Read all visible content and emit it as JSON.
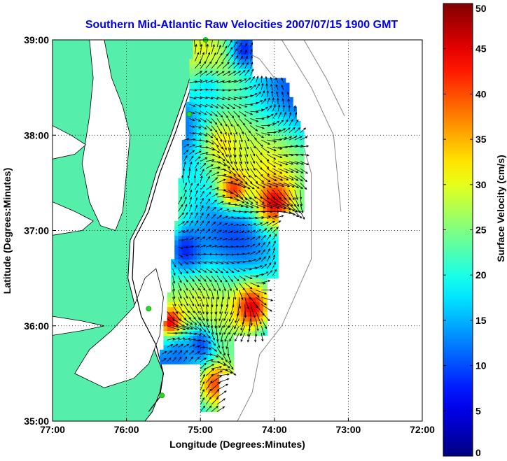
{
  "chart_data": {
    "type": "heatmap",
    "title": "Southern Mid-Atlantic Raw Velocities 2007/07/15 1900 GMT",
    "xlabel": "Longitude (Degrees:Minutes)",
    "ylabel": "Latitude (Degrees:Minutes)",
    "xlim": [
      -77,
      -72
    ],
    "ylim": [
      35,
      39
    ],
    "x_ticks": [
      {
        "value": -77,
        "label": "77:00"
      },
      {
        "value": -76,
        "label": "76:00"
      },
      {
        "value": -75,
        "label": "75:00"
      },
      {
        "value": -74,
        "label": "74:00"
      },
      {
        "value": -73,
        "label": "73:00"
      },
      {
        "value": -72,
        "label": "72:00"
      }
    ],
    "y_ticks": [
      {
        "value": 35,
        "label": "35:00"
      },
      {
        "value": 36,
        "label": "36:00"
      },
      {
        "value": 37,
        "label": "37:00"
      },
      {
        "value": 38,
        "label": "38:00"
      },
      {
        "value": 39,
        "label": "39:00"
      }
    ],
    "grid": true,
    "grid_style": "dotted",
    "colorbar": {
      "label": "Surface Velocity (cm/s)",
      "range": [
        0,
        50
      ],
      "ticks": [
        {
          "value": 0,
          "label": "0"
        },
        {
          "value": 5,
          "label": "5"
        },
        {
          "value": 10,
          "label": "10"
        },
        {
          "value": 15,
          "label": "15"
        },
        {
          "value": 20,
          "label": "20"
        },
        {
          "value": 25,
          "label": "25"
        },
        {
          "value": 30,
          "label": "30"
        },
        {
          "value": 35,
          "label": "35"
        },
        {
          "value": 40,
          "label": "40"
        },
        {
          "value": 45,
          "label": "45"
        },
        {
          "value": 50,
          "label": "50"
        }
      ],
      "colormap": "jet"
    },
    "colors": {
      "land": "#55eeaa",
      "water": "#ffffff",
      "title": "#0000ee",
      "coast_line": "#000000",
      "bathymetry": "#888888",
      "arrows": "#000000",
      "stations": "#22dd22"
    },
    "field": {
      "lon_step": 0.1,
      "lat_step": 0.1,
      "lon_start": -75.8,
      "lat_start": 35.1,
      "rows": [
        [
          0,
          0,
          0,
          0,
          0,
          0,
          0,
          0,
          0,
          0,
          0,
          0,
          0,
          0,
          0,
          0,
          0,
          0,
          0,
          0,
          0,
          0,
          0,
          0,
          0,
          0,
          0
        ],
        [
          0,
          0,
          0,
          0,
          0,
          0,
          0,
          0,
          0,
          0,
          0,
          0,
          0,
          0,
          0,
          0,
          0,
          0,
          0,
          0,
          0,
          0,
          0,
          0,
          0,
          0,
          0
        ]
      ],
      "scene": {
        "lat_min": 35.1,
        "lat_max": 39.0,
        "base_speed": 20,
        "hotspots": [
          {
            "lon": -74.3,
            "lat": 36.2,
            "r": 0.25,
            "v": 45
          },
          {
            "lon": -74.0,
            "lat": 37.3,
            "r": 0.25,
            "v": 45
          },
          {
            "lon": -74.55,
            "lat": 37.45,
            "r": 0.2,
            "v": 42
          },
          {
            "lon": -75.4,
            "lat": 36.05,
            "r": 0.15,
            "v": 45
          },
          {
            "lon": -75.55,
            "lat": 37.0,
            "r": 0.2,
            "v": 40
          },
          {
            "lon": -74.8,
            "lat": 35.4,
            "r": 0.25,
            "v": 40
          },
          {
            "lon": -74.7,
            "lat": 37.9,
            "r": 0.3,
            "v": 32
          },
          {
            "lon": -75.2,
            "lat": 36.8,
            "r": 0.25,
            "v": 8
          },
          {
            "lon": -75.0,
            "lat": 35.8,
            "r": 0.2,
            "v": 10
          },
          {
            "lon": -75.3,
            "lat": 35.7,
            "r": 0.15,
            "v": 12
          },
          {
            "lon": -74.4,
            "lat": 38.9,
            "r": 0.2,
            "v": 8
          },
          {
            "lon": -74.9,
            "lat": 38.5,
            "r": 0.2,
            "v": 18
          }
        ]
      }
    },
    "bathymetry_contours": [
      {
        "points": [
          [
            -74.7,
            39.0
          ],
          [
            -74.2,
            38.8
          ],
          [
            -73.8,
            38.4
          ],
          [
            -73.5,
            37.6
          ],
          [
            -73.5,
            36.7
          ],
          [
            -73.9,
            36.0
          ],
          [
            -74.2,
            35.7
          ],
          [
            -74.3,
            35.3
          ],
          [
            -74.5,
            35.0
          ]
        ]
      },
      {
        "points": [
          [
            -73.9,
            39.0
          ],
          [
            -73.5,
            38.5
          ],
          [
            -73.2,
            38.0
          ],
          [
            -73.1,
            37.2
          ]
        ]
      },
      {
        "points": [
          [
            -73.6,
            39.0
          ],
          [
            -73.3,
            38.6
          ],
          [
            -73.05,
            38.2
          ]
        ]
      }
    ],
    "coast": {
      "land_polygon": [
        [
          -77.0,
          39.0
        ],
        [
          -75.1,
          39.0
        ],
        [
          -75.05,
          38.85
        ],
        [
          -75.2,
          38.45
        ],
        [
          -75.4,
          38.0
        ],
        [
          -75.6,
          37.6
        ],
        [
          -75.75,
          37.2
        ],
        [
          -75.95,
          36.9
        ],
        [
          -75.98,
          36.5
        ],
        [
          -75.85,
          36.1
        ],
        [
          -75.65,
          35.8
        ],
        [
          -75.5,
          35.5
        ],
        [
          -75.55,
          35.3
        ],
        [
          -75.65,
          35.1
        ],
        [
          -75.75,
          35.0
        ],
        [
          -77.0,
          35.0
        ]
      ],
      "bays": [
        {
          "points": [
            [
              -76.3,
              39.0
            ],
            [
              -76.2,
              38.6
            ],
            [
              -76.05,
              38.3
            ],
            [
              -75.95,
              38.0
            ],
            [
              -76.0,
              37.6
            ],
            [
              -76.05,
              37.2
            ],
            [
              -76.15,
              37.0
            ],
            [
              -76.35,
              37.05
            ],
            [
              -76.5,
              37.3
            ],
            [
              -76.6,
              37.7
            ],
            [
              -76.5,
              38.2
            ],
            [
              -76.45,
              38.6
            ],
            [
              -76.5,
              39.0
            ]
          ]
        },
        {
          "points": [
            [
              -75.6,
              36.6
            ],
            [
              -75.5,
              36.3
            ],
            [
              -75.55,
              35.9
            ],
            [
              -75.7,
              35.6
            ],
            [
              -75.9,
              35.45
            ],
            [
              -76.3,
              35.35
            ],
            [
              -76.7,
              35.5
            ],
            [
              -76.5,
              35.75
            ],
            [
              -76.2,
              35.95
            ],
            [
              -75.9,
              36.2
            ],
            [
              -75.75,
              36.5
            ]
          ]
        },
        {
          "points": [
            [
              -77.0,
              37.3
            ],
            [
              -76.7,
              37.2
            ],
            [
              -76.45,
              37.1
            ],
            [
              -76.6,
              37.0
            ],
            [
              -77.0,
              36.95
            ]
          ]
        },
        {
          "points": [
            [
              -77.0,
              38.1
            ],
            [
              -76.75,
              38.0
            ],
            [
              -76.55,
              37.9
            ],
            [
              -76.7,
              37.8
            ],
            [
              -77.0,
              37.75
            ]
          ]
        },
        {
          "points": [
            [
              -77.0,
              36.1
            ],
            [
              -76.6,
              36.05
            ],
            [
              -76.3,
              36.0
            ],
            [
              -76.6,
              35.95
            ],
            [
              -77.0,
              35.9
            ]
          ]
        }
      ],
      "barrier_islands": [
        [
          [
            -75.7,
            35.1
          ],
          [
            -75.55,
            35.25
          ],
          [
            -75.5,
            35.5
          ],
          [
            -75.6,
            35.8
          ],
          [
            -75.8,
            36.1
          ],
          [
            -75.92,
            36.5
          ],
          [
            -75.9,
            36.9
          ],
          [
            -75.7,
            37.2
          ],
          [
            -75.55,
            37.6
          ],
          [
            -75.35,
            38.0
          ],
          [
            -75.15,
            38.45
          ],
          [
            -75.05,
            38.85
          ]
        ]
      ]
    },
    "stations": [
      {
        "lon": -74.93,
        "lat": 39.0
      },
      {
        "lon": -75.15,
        "lat": 38.22
      },
      {
        "lon": -75.7,
        "lat": 36.18
      },
      {
        "lon": -75.52,
        "lat": 35.27
      }
    ]
  }
}
